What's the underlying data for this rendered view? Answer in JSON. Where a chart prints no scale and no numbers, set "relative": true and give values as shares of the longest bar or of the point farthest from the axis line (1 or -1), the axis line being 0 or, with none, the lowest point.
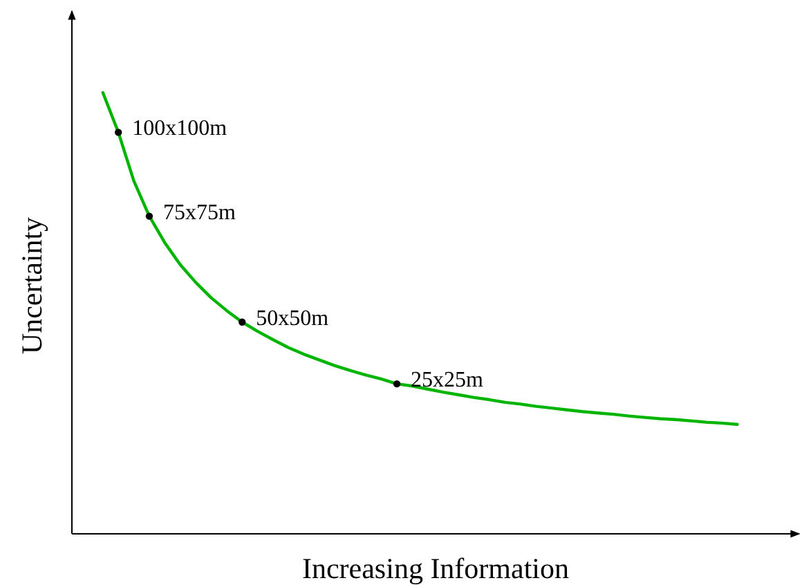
{
  "chart_data": {
    "type": "line",
    "xlabel": "Increasing Information",
    "ylabel": "Uncertainty",
    "relative": true,
    "categories": [
      null,
      null,
      null,
      null,
      null,
      null,
      null,
      null,
      null,
      null,
      null,
      null,
      null,
      null,
      null,
      null,
      null,
      null,
      null,
      null,
      null,
      null,
      null,
      null,
      null,
      null,
      null,
      null,
      null,
      null,
      null,
      null,
      null,
      null,
      null,
      null,
      null,
      null,
      null,
      null,
      null,
      null
    ],
    "series": [
      {
        "color": "#00b400",
        "values": [
          1.0,
          0.91,
          0.8,
          0.72,
          0.66,
          0.61,
          0.57,
          0.535,
          0.506,
          0.48,
          0.459,
          0.44,
          0.422,
          0.407,
          0.394,
          0.381,
          0.37,
          0.36,
          0.351,
          0.34,
          0.335,
          0.328,
          0.321,
          0.315,
          0.309,
          0.304,
          0.298,
          0.294,
          0.289,
          0.285,
          0.281,
          0.277,
          0.274,
          0.271,
          0.267,
          0.264,
          0.261,
          0.259,
          0.256,
          0.253,
          0.251,
          0.248
        ]
      }
    ],
    "annotations": [
      "100x100m",
      "75x75m",
      "50x50m",
      "25x25m"
    ]
  }
}
